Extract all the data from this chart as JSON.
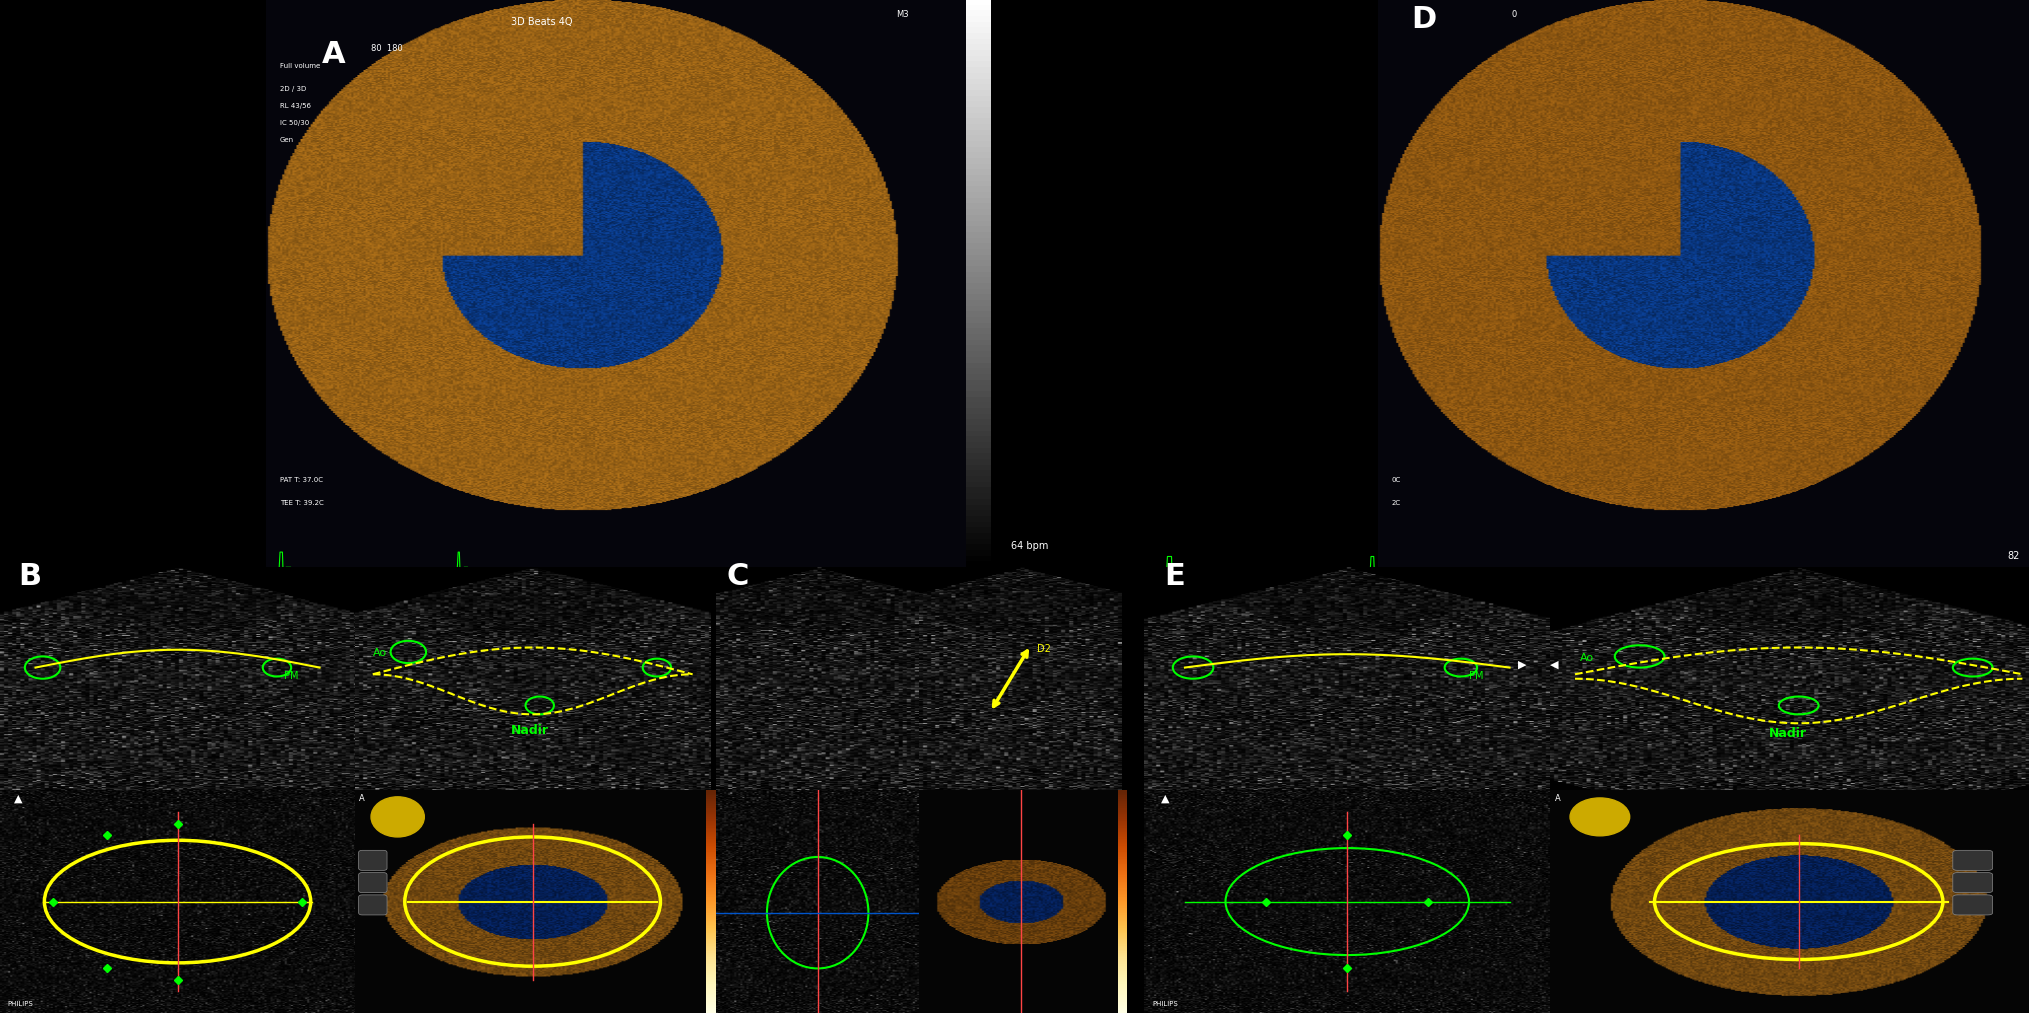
{
  "bg_color": "#000000",
  "white_bg": "#ffffff",
  "panel_A_label": "A",
  "panel_B_label": "B",
  "panel_C_label": "C",
  "panel_D_label": "D",
  "panel_E_label": "E",
  "label_color": "#ffffff",
  "label_fontsize": 22,
  "green_color": "#00ff00",
  "yellow_color": "#ffff00",
  "red_border": "#ff0000",
  "blue_border": "#0000ff",
  "green_border": "#00cc00",
  "title_3D": "3D Beats 4Q",
  "text_color_white": "#ffffff",
  "text_nadir": "Nadir",
  "text_ao": "Ao",
  "text_pm": "PM",
  "text_D2": "D2",
  "text_64bpm": "64 bpm",
  "text_82": "82"
}
